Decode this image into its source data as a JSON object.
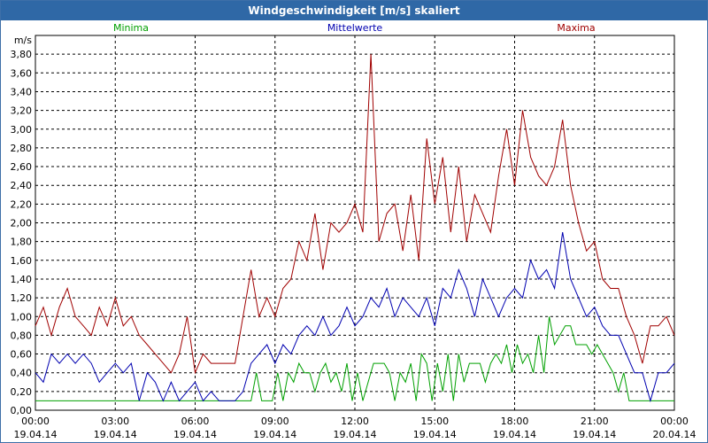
{
  "window": {
    "title": "Windgeschwindigkeit [m/s] skaliert"
  },
  "chart_data": {
    "type": "line",
    "title": "Windgeschwindigkeit [m/s] skaliert",
    "ylabel": "m/s",
    "ylim": [
      0,
      4.0
    ],
    "yticks": [
      "0,00",
      "0,20",
      "0,40",
      "0,60",
      "0,80",
      "1,00",
      "1,20",
      "1,40",
      "1,60",
      "1,80",
      "2,00",
      "2,20",
      "2,40",
      "2,60",
      "2,80",
      "3,00",
      "3,20",
      "3,40",
      "3,60",
      "3,80"
    ],
    "xlim_hours": [
      0,
      24
    ],
    "xticks": [
      {
        "time": "00:00",
        "date": "19.04.14"
      },
      {
        "time": "03:00",
        "date": "19.04.14"
      },
      {
        "time": "06:00",
        "date": "19.04.14"
      },
      {
        "time": "09:00",
        "date": "19.04.14"
      },
      {
        "time": "12:00",
        "date": "19.04.14"
      },
      {
        "time": "15:00",
        "date": "19.04.14"
      },
      {
        "time": "18:00",
        "date": "19.04.14"
      },
      {
        "time": "21:00",
        "date": "19.04.14"
      },
      {
        "time": "00:00",
        "date": "20.04.14"
      }
    ],
    "grid": true,
    "legend_position": "top",
    "series": [
      {
        "name": "Minima",
        "color": "#00a000",
        "x": [
          0,
          7.9,
          8.1,
          8.3,
          8.5,
          8.7,
          8.9,
          9.1,
          9.3,
          9.5,
          9.7,
          9.9,
          10.1,
          10.3,
          10.5,
          10.7,
          10.9,
          11.1,
          11.3,
          11.5,
          11.7,
          11.9,
          12.1,
          12.3,
          12.5,
          12.7,
          12.9,
          13.1,
          13.3,
          13.5,
          13.7,
          13.9,
          14.1,
          14.3,
          14.5,
          14.7,
          14.9,
          15.1,
          15.3,
          15.5,
          15.7,
          15.9,
          16.1,
          16.3,
          16.5,
          16.7,
          16.9,
          17.1,
          17.3,
          17.5,
          17.7,
          17.9,
          18.1,
          18.3,
          18.5,
          18.7,
          18.9,
          19.1,
          19.3,
          19.5,
          19.7,
          19.9,
          20.1,
          20.3,
          20.5,
          20.7,
          20.9,
          21.1,
          21.3,
          21.5,
          21.7,
          21.9,
          22.1,
          22.3,
          22.5,
          23.0,
          23.5,
          24.0
        ],
        "y": [
          0.1,
          0.1,
          0.1,
          0.4,
          0.1,
          0.1,
          0.1,
          0.4,
          0.1,
          0.4,
          0.3,
          0.5,
          0.4,
          0.4,
          0.2,
          0.4,
          0.5,
          0.3,
          0.4,
          0.2,
          0.5,
          0.1,
          0.4,
          0.1,
          0.3,
          0.5,
          0.5,
          0.5,
          0.4,
          0.1,
          0.4,
          0.3,
          0.5,
          0.1,
          0.6,
          0.5,
          0.1,
          0.5,
          0.2,
          0.6,
          0.1,
          0.6,
          0.3,
          0.5,
          0.5,
          0.5,
          0.3,
          0.5,
          0.6,
          0.5,
          0.7,
          0.4,
          0.7,
          0.5,
          0.6,
          0.4,
          0.8,
          0.4,
          1.0,
          0.7,
          0.8,
          0.9,
          0.9,
          0.7,
          0.7,
          0.7,
          0.6,
          0.7,
          0.6,
          0.5,
          0.4,
          0.2,
          0.4,
          0.1,
          0.1,
          0.1,
          0.1,
          0.1
        ]
      },
      {
        "name": "Mittelwerte",
        "color": "#0000b0",
        "x": [
          0,
          0.3,
          0.6,
          0.9,
          1.2,
          1.5,
          1.8,
          2.1,
          2.4,
          2.7,
          3.0,
          3.3,
          3.6,
          3.9,
          4.2,
          4.5,
          4.8,
          5.1,
          5.4,
          5.7,
          6.0,
          6.3,
          6.6,
          6.9,
          7.2,
          7.5,
          7.8,
          8.1,
          8.4,
          8.7,
          9.0,
          9.3,
          9.6,
          9.9,
          10.2,
          10.5,
          10.8,
          11.1,
          11.4,
          11.7,
          12.0,
          12.3,
          12.6,
          12.9,
          13.2,
          13.5,
          13.8,
          14.1,
          14.4,
          14.7,
          15.0,
          15.3,
          15.6,
          15.9,
          16.2,
          16.5,
          16.8,
          17.1,
          17.4,
          17.7,
          18.0,
          18.3,
          18.6,
          18.9,
          19.2,
          19.5,
          19.8,
          20.1,
          20.4,
          20.7,
          21.0,
          21.3,
          21.6,
          21.9,
          22.2,
          22.5,
          22.8,
          23.1,
          23.4,
          23.7,
          24.0
        ],
        "y": [
          0.4,
          0.3,
          0.6,
          0.5,
          0.6,
          0.5,
          0.6,
          0.5,
          0.3,
          0.4,
          0.5,
          0.4,
          0.5,
          0.1,
          0.4,
          0.3,
          0.1,
          0.3,
          0.1,
          0.2,
          0.3,
          0.1,
          0.2,
          0.1,
          0.1,
          0.1,
          0.2,
          0.5,
          0.6,
          0.7,
          0.5,
          0.7,
          0.6,
          0.8,
          0.9,
          0.8,
          1.0,
          0.8,
          0.9,
          1.1,
          0.9,
          1.0,
          1.2,
          1.1,
          1.3,
          1.0,
          1.2,
          1.1,
          1.0,
          1.2,
          0.9,
          1.3,
          1.2,
          1.5,
          1.3,
          1.0,
          1.4,
          1.2,
          1.0,
          1.2,
          1.3,
          1.2,
          1.6,
          1.4,
          1.5,
          1.3,
          1.9,
          1.4,
          1.2,
          1.0,
          1.1,
          0.9,
          0.8,
          0.8,
          0.6,
          0.4,
          0.4,
          0.1,
          0.4,
          0.4,
          0.5
        ]
      },
      {
        "name": "Maxima",
        "color": "#a00000",
        "x": [
          0,
          0.3,
          0.6,
          0.9,
          1.2,
          1.5,
          1.8,
          2.1,
          2.4,
          2.7,
          3.0,
          3.3,
          3.6,
          3.9,
          4.2,
          4.5,
          4.8,
          5.1,
          5.4,
          5.7,
          6.0,
          6.3,
          6.6,
          6.9,
          7.2,
          7.5,
          7.8,
          8.1,
          8.4,
          8.7,
          9.0,
          9.3,
          9.6,
          9.9,
          10.2,
          10.5,
          10.8,
          11.1,
          11.4,
          11.7,
          12.0,
          12.3,
          12.6,
          12.9,
          13.2,
          13.5,
          13.8,
          14.1,
          14.4,
          14.7,
          15.0,
          15.3,
          15.6,
          15.9,
          16.2,
          16.5,
          16.8,
          17.1,
          17.4,
          17.7,
          18.0,
          18.3,
          18.6,
          18.9,
          19.2,
          19.5,
          19.8,
          20.1,
          20.4,
          20.7,
          21.0,
          21.3,
          21.6,
          21.9,
          22.2,
          22.5,
          22.8,
          23.1,
          23.4,
          23.7,
          24.0
        ],
        "y": [
          0.9,
          1.1,
          0.8,
          1.1,
          1.3,
          1.0,
          0.9,
          0.8,
          1.1,
          0.9,
          1.2,
          0.9,
          1.0,
          0.8,
          0.7,
          0.6,
          0.5,
          0.4,
          0.6,
          1.0,
          0.4,
          0.6,
          0.5,
          0.5,
          0.5,
          0.5,
          1.0,
          1.5,
          1.0,
          1.2,
          1.0,
          1.3,
          1.4,
          1.8,
          1.6,
          2.1,
          1.5,
          2.0,
          1.9,
          2.0,
          2.2,
          1.9,
          3.8,
          1.8,
          2.1,
          2.2,
          1.7,
          2.3,
          1.6,
          2.9,
          2.2,
          2.7,
          1.9,
          2.6,
          1.8,
          2.3,
          2.1,
          1.9,
          2.5,
          3.0,
          2.4,
          3.2,
          2.7,
          2.5,
          2.4,
          2.6,
          3.1,
          2.4,
          2.0,
          1.7,
          1.8,
          1.4,
          1.3,
          1.3,
          1.0,
          0.8,
          0.5,
          0.9,
          0.9,
          1.0,
          0.8
        ]
      }
    ]
  }
}
